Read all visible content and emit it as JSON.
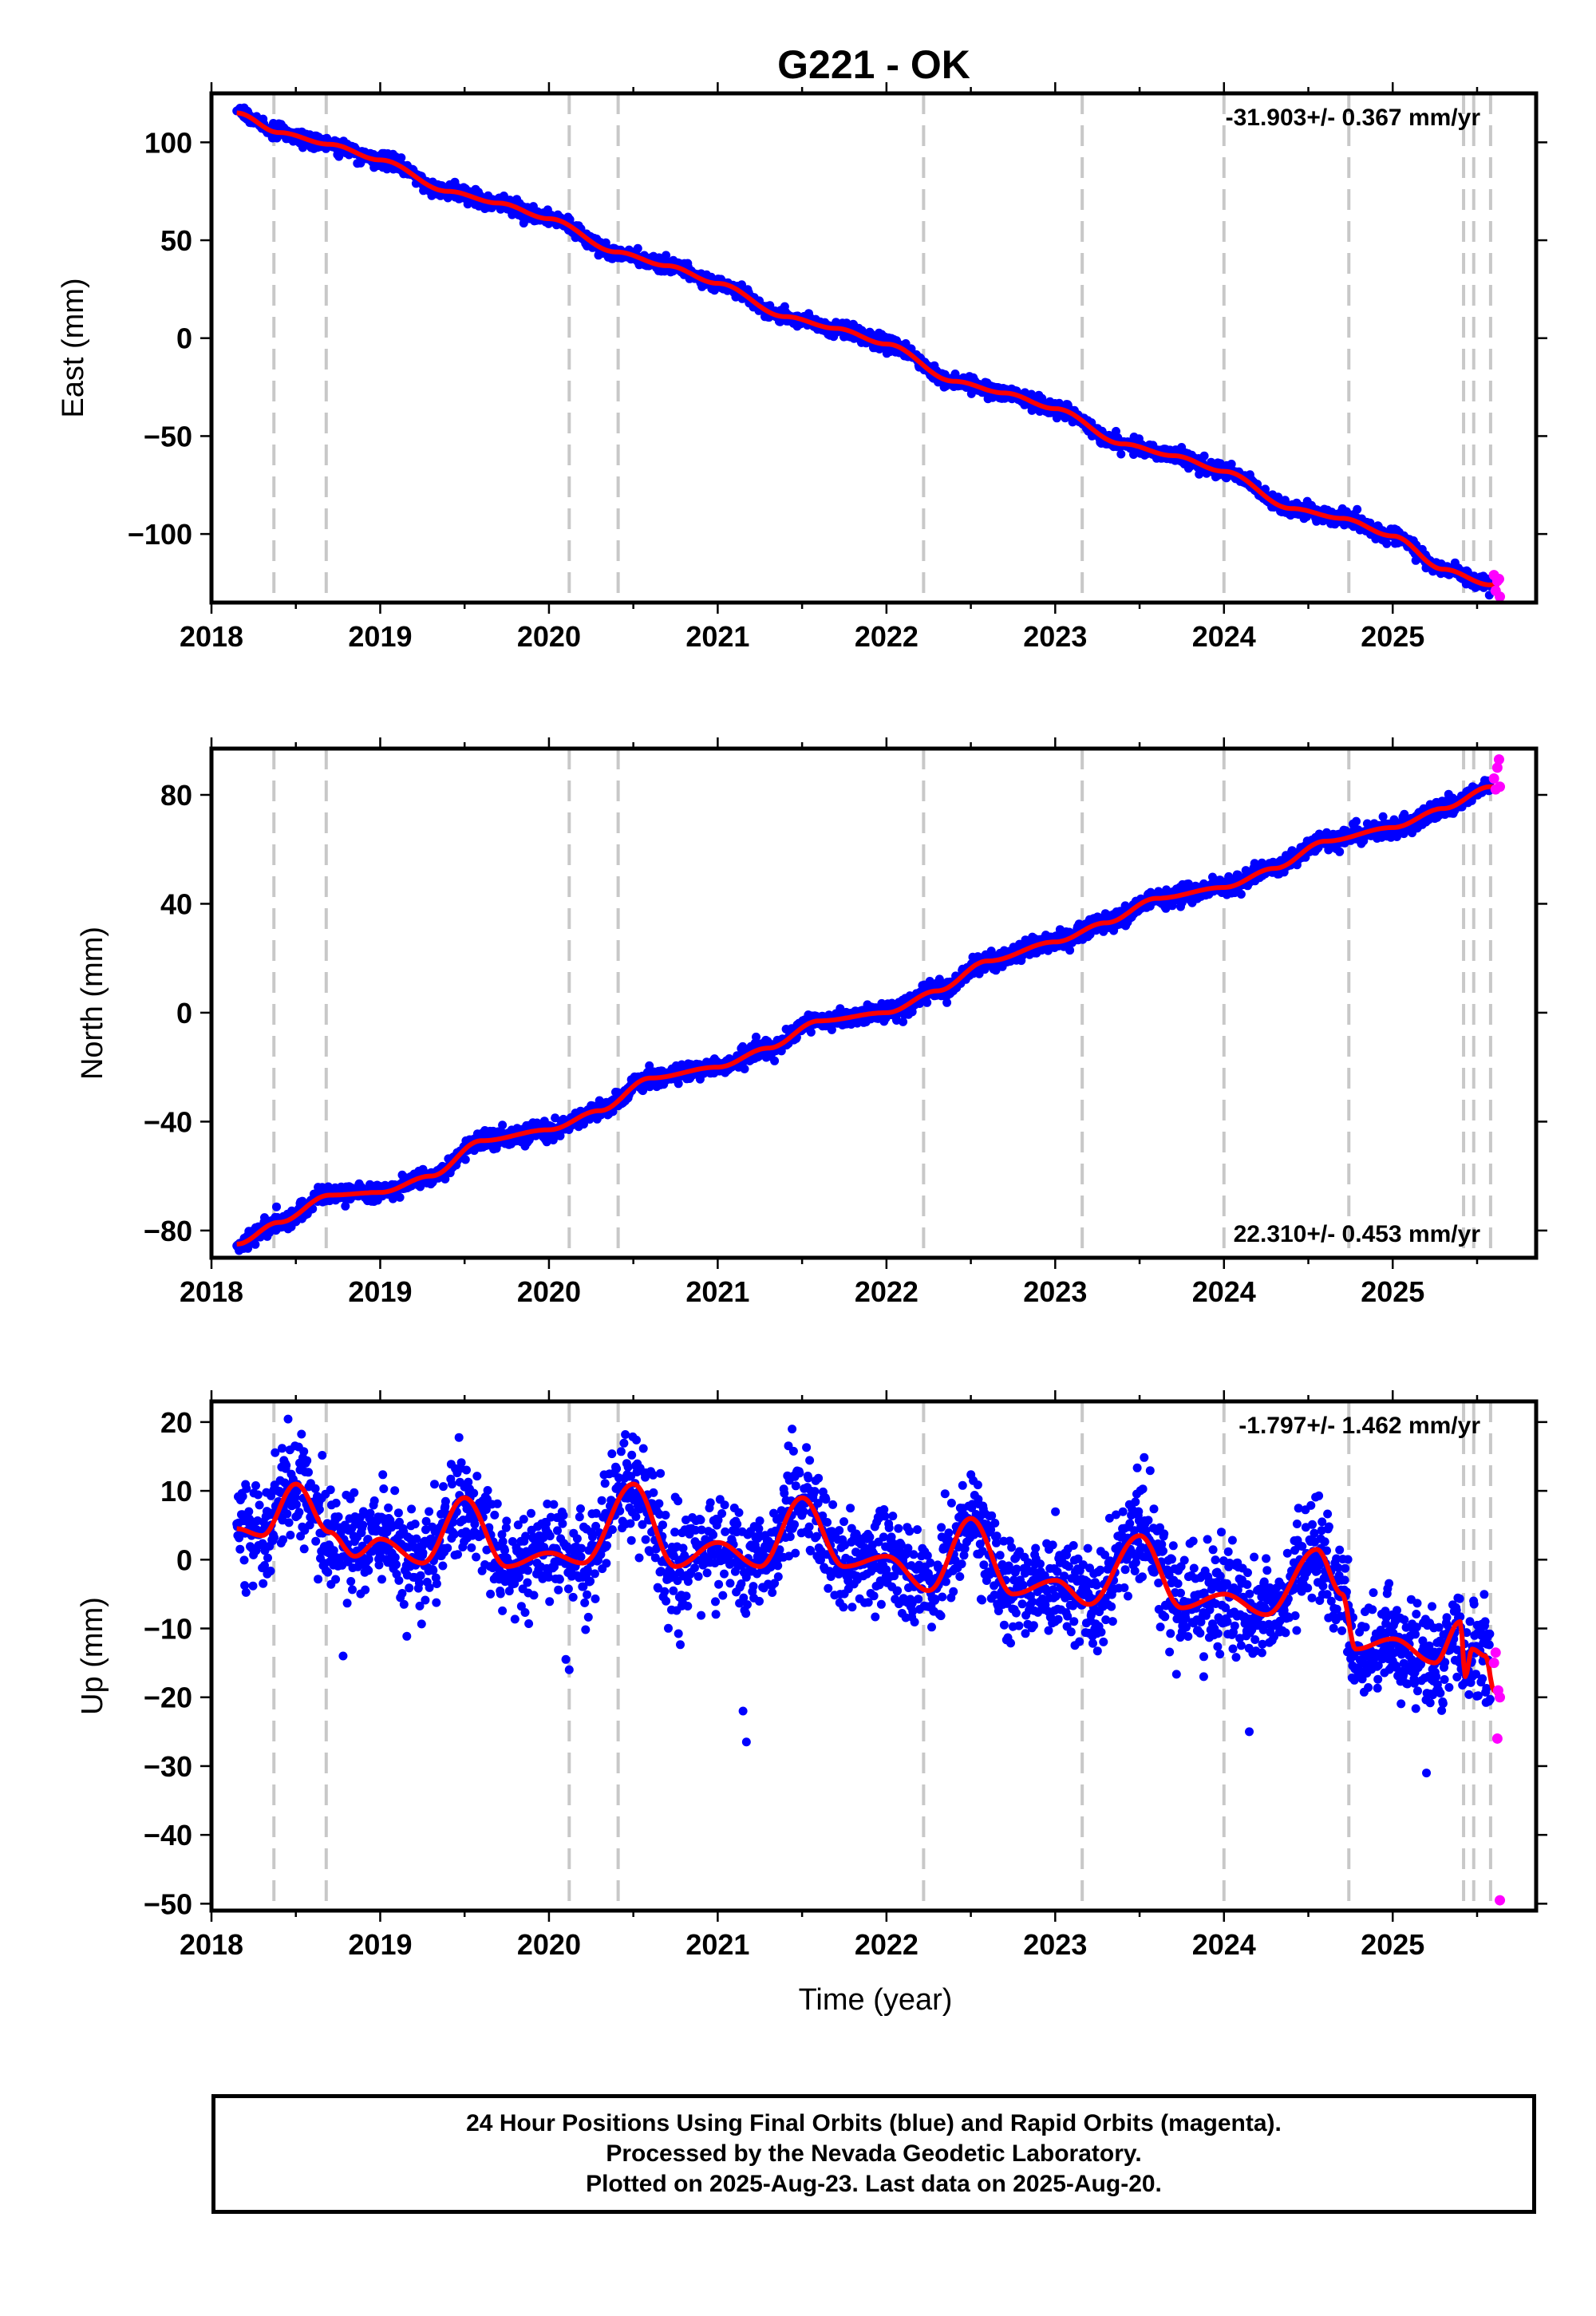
{
  "chart_data": {
    "type": "scatter",
    "title": "G221 - OK",
    "xlabel": "Time (year)",
    "x_range": [
      2018.0,
      2025.85
    ],
    "x_ticks": [
      2018,
      2019,
      2020,
      2021,
      2022,
      2023,
      2024,
      2025
    ],
    "x_tick_labels": [
      "2018",
      "2019",
      "2020",
      "2021",
      "2022",
      "2023",
      "2024",
      "2025"
    ],
    "data_start": 2018.15,
    "final_end": 2025.58,
    "rapid_end": 2025.635,
    "event_lines": [
      2018.37,
      2018.68,
      2020.12,
      2020.41,
      2022.22,
      2023.16,
      2024.0,
      2024.74,
      2025.42,
      2025.48,
      2025.58
    ],
    "colors": {
      "final": "#0000ff",
      "rapid": "#ff00ff",
      "model": "#ff0000",
      "event_line": "#c8c8c8"
    },
    "panels": [
      {
        "name": "east",
        "ylabel": "East (mm)",
        "y_range": [
          -135,
          125
        ],
        "y_ticks": [
          100,
          50,
          0,
          -50,
          -100
        ],
        "y_tick_labels": [
          "100",
          "50",
          "0",
          "−50",
          "−100"
        ],
        "rate_label": "-31.903+/- 0.367 mm/yr",
        "rate_position": "top-right",
        "model_points": [
          [
            2018.15,
            115
          ],
          [
            2018.4,
            105
          ],
          [
            2018.7,
            99
          ],
          [
            2019.0,
            91
          ],
          [
            2019.4,
            75
          ],
          [
            2019.7,
            69
          ],
          [
            2020.0,
            61
          ],
          [
            2020.4,
            44
          ],
          [
            2020.7,
            37
          ],
          [
            2021.0,
            28
          ],
          [
            2021.4,
            11
          ],
          [
            2021.7,
            5
          ],
          [
            2022.0,
            -3
          ],
          [
            2022.4,
            -22
          ],
          [
            2022.7,
            -28
          ],
          [
            2023.0,
            -36
          ],
          [
            2023.4,
            -54
          ],
          [
            2023.7,
            -60
          ],
          [
            2024.0,
            -68
          ],
          [
            2024.4,
            -87
          ],
          [
            2024.7,
            -92
          ],
          [
            2025.0,
            -101
          ],
          [
            2025.3,
            -118
          ],
          [
            2025.58,
            -126
          ]
        ],
        "final_noise": 1.8,
        "rapid_points": [
          [
            2025.6,
            -121
          ],
          [
            2025.61,
            -129
          ],
          [
            2025.62,
            -124
          ],
          [
            2025.63,
            -123
          ],
          [
            2025.635,
            -132
          ]
        ]
      },
      {
        "name": "north",
        "ylabel": "North (mm)",
        "y_range": [
          -90,
          97
        ],
        "y_ticks": [
          80,
          40,
          0,
          -40,
          -80
        ],
        "y_tick_labels": [
          "80",
          "40",
          "0",
          "−40",
          "−80"
        ],
        "rate_label": "22.310+/- 0.453 mm/yr",
        "rate_position": "bottom-right",
        "model_points": [
          [
            2018.15,
            -85
          ],
          [
            2018.4,
            -77
          ],
          [
            2018.7,
            -67
          ],
          [
            2019.0,
            -66
          ],
          [
            2019.3,
            -60
          ],
          [
            2019.6,
            -47
          ],
          [
            2020.0,
            -43
          ],
          [
            2020.3,
            -36
          ],
          [
            2020.6,
            -24
          ],
          [
            2021.0,
            -20
          ],
          [
            2021.3,
            -13
          ],
          [
            2021.6,
            -3
          ],
          [
            2022.0,
            0
          ],
          [
            2022.3,
            8
          ],
          [
            2022.6,
            19
          ],
          [
            2023.0,
            26
          ],
          [
            2023.3,
            33
          ],
          [
            2023.6,
            42
          ],
          [
            2024.0,
            46
          ],
          [
            2024.3,
            53
          ],
          [
            2024.6,
            63
          ],
          [
            2025.0,
            68
          ],
          [
            2025.3,
            75
          ],
          [
            2025.58,
            83
          ]
        ],
        "final_noise": 1.6,
        "rapid_points": [
          [
            2025.6,
            86
          ],
          [
            2025.61,
            82
          ],
          [
            2025.62,
            90
          ],
          [
            2025.63,
            93
          ],
          [
            2025.635,
            83
          ]
        ]
      },
      {
        "name": "up",
        "ylabel": "Up (mm)",
        "y_range": [
          -51,
          23
        ],
        "y_ticks": [
          20,
          10,
          0,
          -10,
          -20,
          -30,
          -40,
          -50
        ],
        "y_tick_labels": [
          "20",
          "10",
          "0",
          "−10",
          "−20",
          "−30",
          "−40",
          "−50"
        ],
        "rate_label": "-1.797+/- 1.462 mm/yr",
        "rate_position": "top-right",
        "model_points": [
          [
            2018.15,
            4.5
          ],
          [
            2018.3,
            3.5
          ],
          [
            2018.5,
            11
          ],
          [
            2018.7,
            4
          ],
          [
            2018.85,
            0.5
          ],
          [
            2019.0,
            3
          ],
          [
            2019.25,
            -0.5
          ],
          [
            2019.5,
            9
          ],
          [
            2019.75,
            -1
          ],
          [
            2020.0,
            1
          ],
          [
            2020.2,
            -0.5
          ],
          [
            2020.5,
            11
          ],
          [
            2020.75,
            -1
          ],
          [
            2021.0,
            2.5
          ],
          [
            2021.25,
            -1
          ],
          [
            2021.5,
            9
          ],
          [
            2021.75,
            -1
          ],
          [
            2022.0,
            0.5
          ],
          [
            2022.25,
            -4.5
          ],
          [
            2022.5,
            6
          ],
          [
            2022.75,
            -5
          ],
          [
            2023.0,
            -3
          ],
          [
            2023.2,
            -6.5
          ],
          [
            2023.5,
            3.5
          ],
          [
            2023.75,
            -7
          ],
          [
            2024.0,
            -5
          ],
          [
            2024.25,
            -8
          ],
          [
            2024.55,
            1.5
          ],
          [
            2024.7,
            -5
          ],
          [
            2024.78,
            -13
          ],
          [
            2025.0,
            -11.5
          ],
          [
            2025.25,
            -15
          ],
          [
            2025.4,
            -9
          ],
          [
            2025.43,
            -17
          ],
          [
            2025.47,
            -13
          ],
          [
            2025.55,
            -14
          ],
          [
            2025.6,
            -19
          ],
          [
            2025.635,
            -20
          ]
        ],
        "final_noise": 3.6,
        "outliers": [
          [
            2020.1,
            -14.5
          ],
          [
            2020.12,
            -16
          ],
          [
            2021.15,
            -22
          ],
          [
            2021.17,
            -26.5
          ],
          [
            2018.78,
            -14
          ],
          [
            2023.88,
            -17
          ],
          [
            2024.15,
            -25
          ],
          [
            2025.2,
            -31
          ]
        ],
        "rapid_points": [
          [
            2025.6,
            -15
          ],
          [
            2025.61,
            -13.5
          ],
          [
            2025.62,
            -26
          ],
          [
            2025.625,
            -19
          ],
          [
            2025.635,
            -20
          ],
          [
            2025.635,
            -49.5
          ]
        ]
      }
    ]
  },
  "footer": {
    "line1": "24 Hour Positions Using Final Orbits (blue) and Rapid Orbits (magenta).",
    "line2": "Processed by the Nevada Geodetic Laboratory.",
    "line3": "Plotted on 2025-Aug-23. Last data on 2025-Aug-20."
  }
}
